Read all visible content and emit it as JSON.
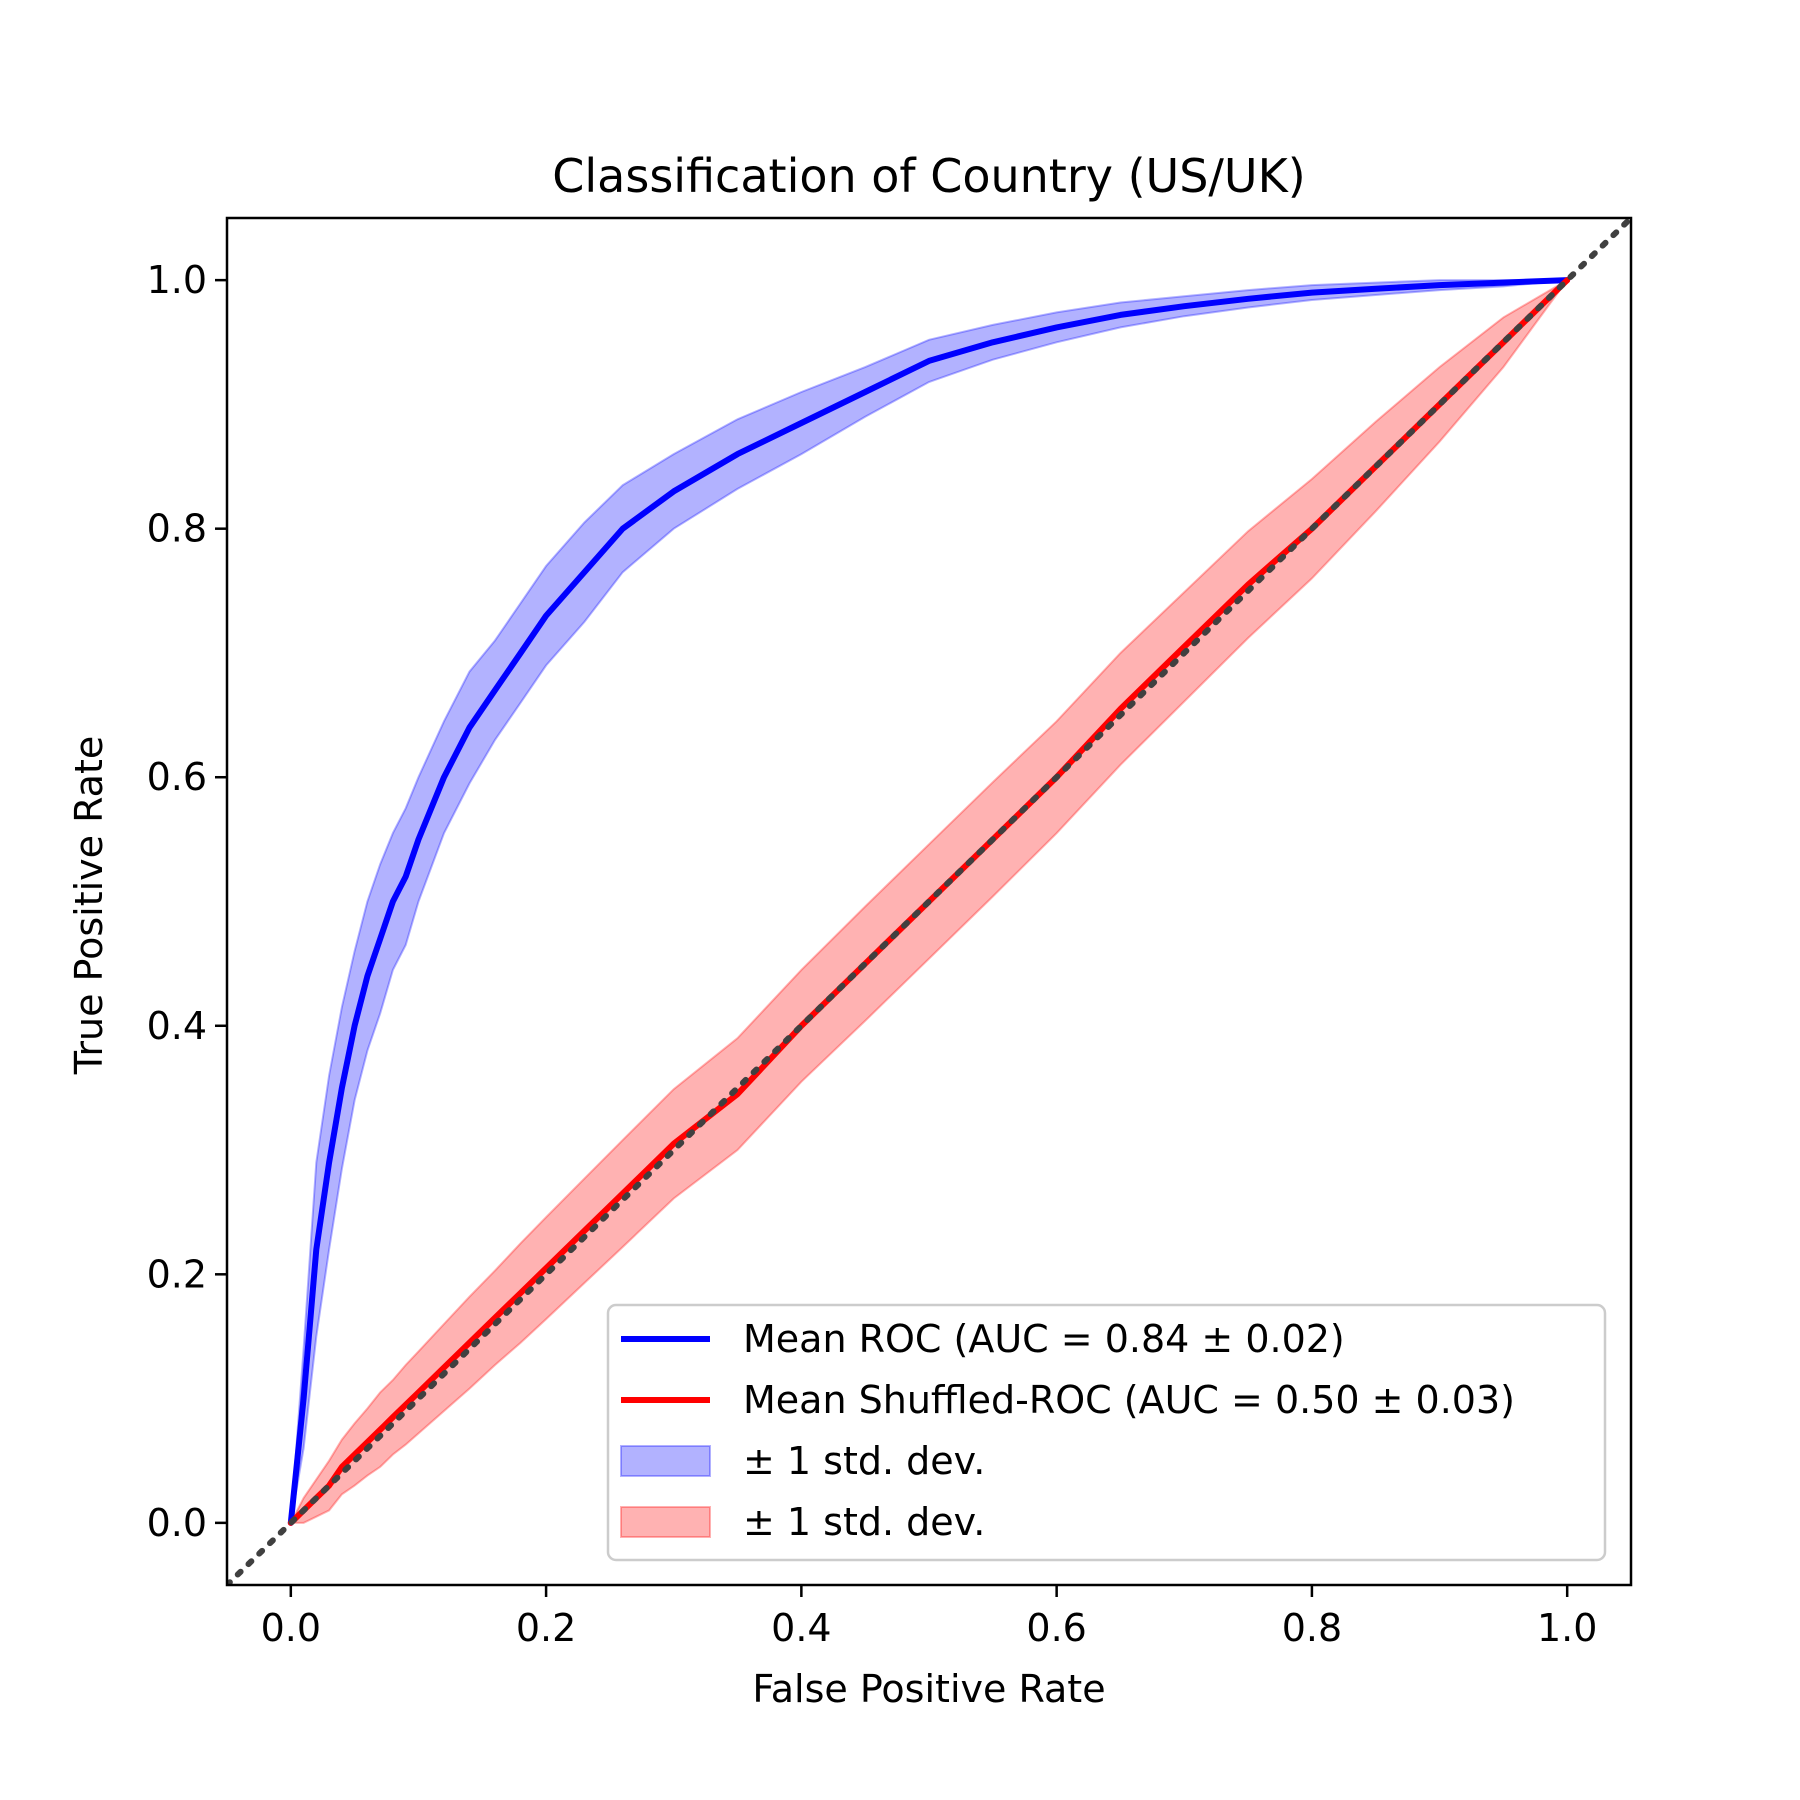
{
  "chart_data": {
    "type": "line",
    "title": "Classification of Country (US/UK)",
    "xlabel": "False Positive Rate",
    "ylabel": "True Positive Rate",
    "xlim": [
      -0.05,
      1.05
    ],
    "ylim": [
      -0.05,
      1.05
    ],
    "xticks": [
      "0.0",
      "0.2",
      "0.4",
      "0.6",
      "0.8",
      "1.0"
    ],
    "yticks": [
      "0.0",
      "0.2",
      "0.4",
      "0.6",
      "0.8",
      "1.0"
    ],
    "grid": false,
    "legend_position": "lower-right",
    "x": [
      0,
      0.01,
      0.02,
      0.03,
      0.04,
      0.05,
      0.06,
      0.07,
      0.08,
      0.09,
      0.1,
      0.12,
      0.14,
      0.16,
      0.18,
      0.2,
      0.23,
      0.26,
      0.3,
      0.35,
      0.4,
      0.45,
      0.5,
      0.55,
      0.6,
      0.65,
      0.7,
      0.75,
      0.8,
      0.85,
      0.9,
      0.95,
      1.0
    ],
    "series": [
      {
        "name": "Mean ROC (AUC = 0.84 ± 0.02)",
        "color": "#0000ff",
        "values": [
          0.0,
          0.1,
          0.22,
          0.29,
          0.35,
          0.4,
          0.44,
          0.47,
          0.5,
          0.52,
          0.55,
          0.6,
          0.64,
          0.67,
          0.7,
          0.73,
          0.765,
          0.8,
          0.83,
          0.86,
          0.885,
          0.91,
          0.935,
          0.95,
          0.962,
          0.972,
          0.979,
          0.985,
          0.99,
          0.993,
          0.996,
          0.998,
          1.0
        ],
        "std": [
          0.0,
          0.04,
          0.07,
          0.07,
          0.065,
          0.06,
          0.06,
          0.06,
          0.055,
          0.055,
          0.05,
          0.045,
          0.045,
          0.04,
          0.04,
          0.04,
          0.04,
          0.035,
          0.03,
          0.028,
          0.025,
          0.02,
          0.017,
          0.014,
          0.012,
          0.01,
          0.008,
          0.007,
          0.006,
          0.005,
          0.004,
          0.003,
          0.0
        ]
      },
      {
        "name": "Mean Shuffled-ROC (AUC = 0.50 ± 0.03)",
        "color": "#ff0000",
        "values": [
          0.0,
          0.01,
          0.02,
          0.03,
          0.045,
          0.055,
          0.065,
          0.075,
          0.085,
          0.095,
          0.105,
          0.125,
          0.145,
          0.165,
          0.185,
          0.205,
          0.235,
          0.265,
          0.305,
          0.345,
          0.4,
          0.45,
          0.5,
          0.55,
          0.6,
          0.655,
          0.705,
          0.755,
          0.8,
          0.85,
          0.9,
          0.95,
          1.0
        ],
        "std": [
          0.0,
          0.01,
          0.015,
          0.02,
          0.022,
          0.025,
          0.027,
          0.03,
          0.03,
          0.032,
          0.033,
          0.035,
          0.037,
          0.038,
          0.04,
          0.041,
          0.042,
          0.043,
          0.044,
          0.045,
          0.045,
          0.046,
          0.046,
          0.046,
          0.045,
          0.045,
          0.044,
          0.043,
          0.04,
          0.036,
          0.03,
          0.02,
          0.0
        ]
      }
    ],
    "reference_line": {
      "x": [
        -0.05,
        1.05
      ],
      "y": [
        -0.05,
        1.05
      ],
      "color": "#404040"
    },
    "legend": [
      {
        "label": "Mean ROC (AUC = 0.84 ± 0.02)",
        "kind": "line",
        "color": "#0000ff"
      },
      {
        "label": "Mean Shuffled-ROC (AUC = 0.50 ± 0.03)",
        "kind": "line",
        "color": "#ff0000"
      },
      {
        "label": "± 1 std. dev.",
        "kind": "band",
        "color": "#0000ff"
      },
      {
        "label": "± 1 std. dev.",
        "kind": "band",
        "color": "#ff0000"
      }
    ]
  }
}
